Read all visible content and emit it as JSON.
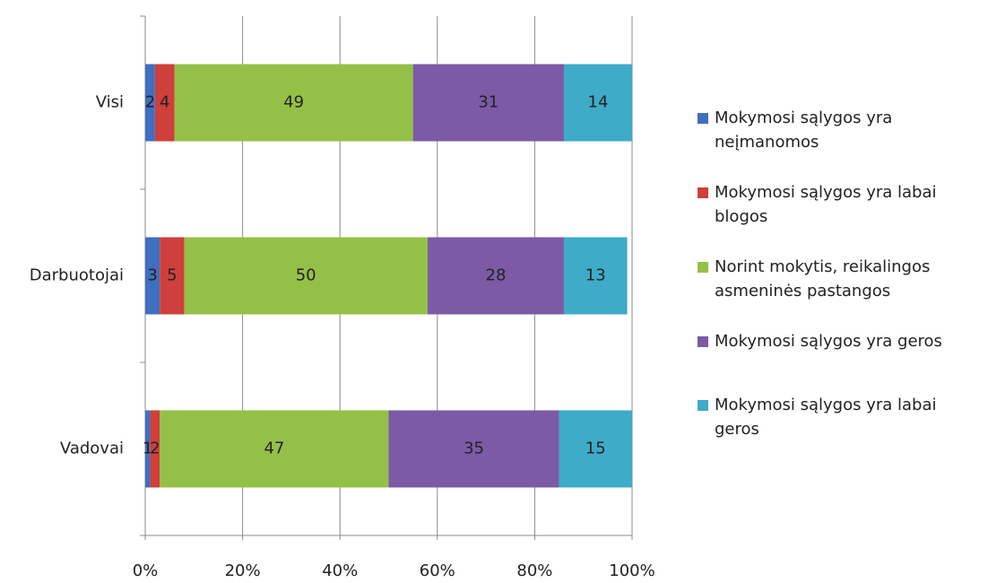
{
  "chart_data": {
    "type": "stacked-barh",
    "categories": [
      "Visi",
      "Darbuotojai",
      "Vadovai"
    ],
    "series": [
      {
        "name": "Mokymosi sąlygos yra neįmanomos",
        "color": "#3f6fbf",
        "values": [
          2,
          3,
          1
        ]
      },
      {
        "name": "Mokymosi sąlygos yra labai blogos",
        "color": "#cf3f3b",
        "values": [
          4,
          5,
          2
        ]
      },
      {
        "name": "Norint mokytis, reikalingos asmeninės pastangos",
        "color": "#95c047",
        "values": [
          49,
          50,
          47
        ]
      },
      {
        "name": "Mokymosi sąlygos yra geros",
        "color": "#7c5aa6",
        "values": [
          31,
          28,
          35
        ]
      },
      {
        "name": "Mokymosi sąlygos yra labai geros",
        "color": "#3eabc8",
        "values": [
          14,
          13,
          15
        ]
      }
    ],
    "xlim": [
      0,
      100
    ],
    "xticks": [
      {
        "value": 0,
        "label": "0%"
      },
      {
        "value": 20,
        "label": "20%"
      },
      {
        "value": 40,
        "label": "40%"
      },
      {
        "value": 60,
        "label": "60%"
      },
      {
        "value": 80,
        "label": "80%"
      },
      {
        "value": 100,
        "label": "100%"
      }
    ],
    "grid": true,
    "legend": "right"
  }
}
